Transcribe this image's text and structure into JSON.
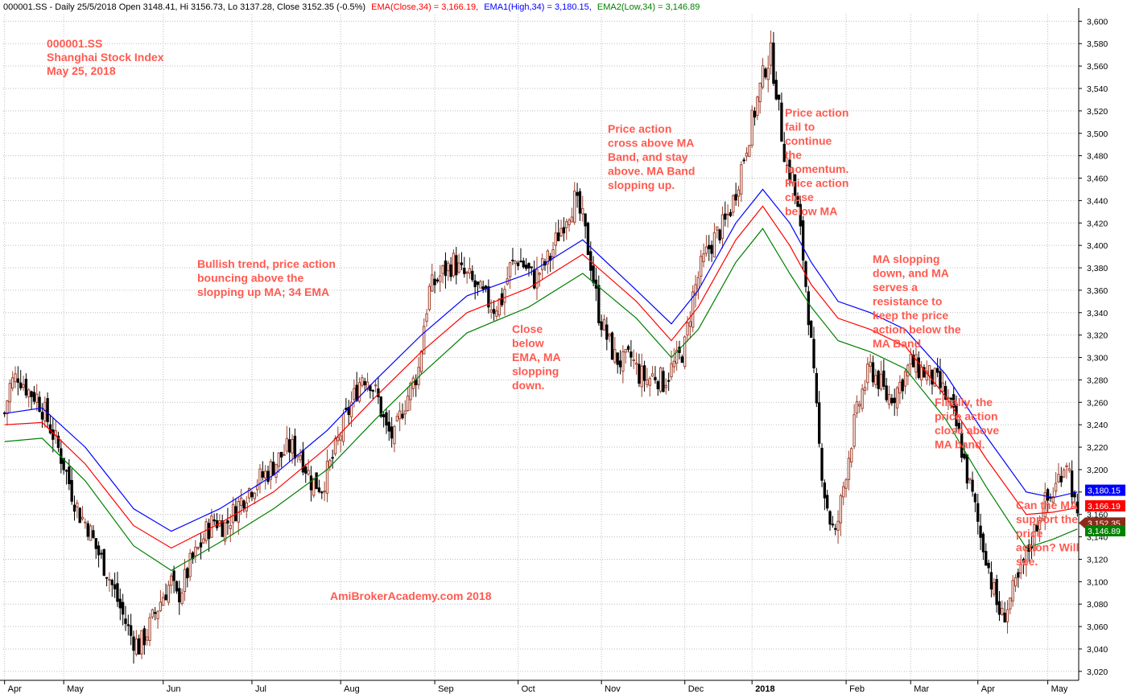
{
  "header": {
    "prefix": "000001.SS - Daily 25/5/2018 Open 3148.41, Hi 3156.73, Lo 3137.28, Close 3152.35 (-0.5%)",
    "ema_close": "EMA(Close,34) = 3,166.19,",
    "ema_high": "EMA1(High,34) = 3,180.15,",
    "ema_low": "EMA2(Low,34) = 3,146.89"
  },
  "title_block": [
    "000001.SS",
    "Shanghai Stock Index",
    "May 25, 2018"
  ],
  "watermark": "AmiBrokerAcademy.com   2018",
  "annotations": [
    {
      "id": "bullish",
      "lines": [
        "Bullish trend, price action",
        "bouncing above the",
        "slopping up MA; 34 EMA"
      ]
    },
    {
      "id": "close-below",
      "lines": [
        "Close",
        "below",
        "EMA, MA",
        "slopping",
        "down."
      ]
    },
    {
      "id": "cross-above",
      "lines": [
        "Price action",
        "cross above MA",
        "Band, and stay",
        "above. MA Band",
        "slopping up."
      ]
    },
    {
      "id": "fail-momentum",
      "lines": [
        "Price action",
        "fail to",
        "continue",
        "the",
        "momentum.",
        "Price action",
        "close",
        "below MA"
      ]
    },
    {
      "id": "ma-resistance",
      "lines": [
        "MA slopping",
        "down, and MA",
        "serves a",
        "resistance to",
        "keep the price",
        "action below the",
        "MA Band"
      ]
    },
    {
      "id": "close-above",
      "lines": [
        "Finally, the",
        "price action",
        "close above",
        "MA band."
      ]
    },
    {
      "id": "question",
      "lines": [
        "Can the MA",
        "support the",
        "price",
        "action? Will",
        "see."
      ]
    }
  ],
  "colors": {
    "ema_close": "#ff0000",
    "ema_high": "#0000ff",
    "ema_low": "#008000",
    "up_candle": "#a0412d",
    "down_candle": "#000000",
    "annotation": "#ff5a50",
    "close_tag": "#8b2b1a"
  },
  "chart_data": {
    "type": "candlestick",
    "y_range": [
      3012,
      3606
    ],
    "y_ticks": [
      "3,020",
      "3,040",
      "3,060",
      "3,080",
      "3,100",
      "3,120",
      "3,140",
      "3,160",
      "3,180",
      "3,200",
      "3,220",
      "3,240",
      "3,260",
      "3,280",
      "3,300",
      "3,320",
      "3,340",
      "3,360",
      "3,380",
      "3,400",
      "3,420",
      "3,440",
      "3,460",
      "3,480",
      "3,500",
      "3,520",
      "3,540",
      "3,560",
      "3,580",
      "3,600"
    ],
    "x_labels": [
      "Apr",
      "May",
      "Jun",
      "Jul",
      "Aug",
      "Sep",
      "Oct",
      "Nov",
      "Dec",
      "2018",
      "Feb",
      "Mar",
      "Apr",
      "May"
    ],
    "grid": true,
    "price_path": [
      [
        0,
        3250
      ],
      [
        2,
        3275
      ],
      [
        5,
        3285
      ],
      [
        9,
        3270
      ],
      [
        12,
        3265
      ],
      [
        15,
        3250
      ],
      [
        18,
        3232
      ],
      [
        22,
        3205
      ],
      [
        25,
        3180
      ],
      [
        28,
        3160
      ],
      [
        31,
        3150
      ],
      [
        34,
        3130
      ],
      [
        38,
        3110
      ],
      [
        41,
        3090
      ],
      [
        44,
        3070
      ],
      [
        47,
        3052
      ],
      [
        50,
        3042
      ],
      [
        53,
        3055
      ],
      [
        56,
        3072
      ],
      [
        59,
        3088
      ],
      [
        62,
        3100
      ],
      [
        64,
        3085
      ],
      [
        66,
        3095
      ],
      [
        69,
        3115
      ],
      [
        72,
        3128
      ],
      [
        75,
        3145
      ],
      [
        78,
        3155
      ],
      [
        82,
        3150
      ],
      [
        86,
        3165
      ],
      [
        90,
        3180
      ],
      [
        94,
        3190
      ],
      [
        98,
        3198
      ],
      [
        102,
        3210
      ],
      [
        106,
        3220
      ],
      [
        110,
        3215
      ],
      [
        114,
        3190
      ],
      [
        118,
        3185
      ],
      [
        122,
        3210
      ],
      [
        126,
        3240
      ],
      [
        130,
        3265
      ],
      [
        133,
        3285
      ],
      [
        136,
        3280
      ],
      [
        139,
        3262
      ],
      [
        142,
        3235
      ],
      [
        145,
        3228
      ],
      [
        148,
        3255
      ],
      [
        151,
        3272
      ],
      [
        154,
        3290
      ],
      [
        156,
        3330
      ],
      [
        158,
        3360
      ],
      [
        161,
        3370
      ],
      [
        164,
        3378
      ],
      [
        167,
        3385
      ],
      [
        170,
        3375
      ],
      [
        173,
        3370
      ],
      [
        176,
        3360
      ],
      [
        179,
        3352
      ],
      [
        182,
        3345
      ],
      [
        185,
        3352
      ],
      [
        188,
        3380
      ],
      [
        191,
        3388
      ],
      [
        194,
        3380
      ],
      [
        197,
        3370
      ],
      [
        200,
        3380
      ],
      [
        203,
        3390
      ],
      [
        206,
        3410
      ],
      [
        209,
        3428
      ],
      [
        212,
        3440
      ],
      [
        215,
        3422
      ],
      [
        218,
        3385
      ],
      [
        221,
        3340
      ],
      [
        224,
        3318
      ],
      [
        227,
        3300
      ],
      [
        230,
        3295
      ],
      [
        233,
        3300
      ],
      [
        236,
        3285
      ],
      [
        239,
        3280
      ],
      [
        242,
        3285
      ],
      [
        245,
        3278
      ],
      [
        248,
        3290
      ],
      [
        251,
        3300
      ],
      [
        253,
        3310
      ],
      [
        256,
        3355
      ],
      [
        259,
        3380
      ],
      [
        262,
        3398
      ],
      [
        265,
        3410
      ],
      [
        268,
        3420
      ],
      [
        271,
        3440
      ],
      [
        274,
        3470
      ],
      [
        277,
        3500
      ],
      [
        280,
        3530
      ],
      [
        283,
        3560
      ],
      [
        285,
        3570
      ],
      [
        287,
        3540
      ],
      [
        289,
        3500
      ],
      [
        291,
        3470
      ],
      [
        293,
        3460
      ],
      [
        295,
        3430
      ],
      [
        297,
        3390
      ],
      [
        299,
        3340
      ],
      [
        301,
        3280
      ],
      [
        303,
        3220
      ],
      [
        305,
        3180
      ],
      [
        307,
        3155
      ],
      [
        309,
        3140
      ],
      [
        311,
        3170
      ],
      [
        313,
        3200
      ],
      [
        316,
        3240
      ],
      [
        319,
        3270
      ],
      [
        322,
        3290
      ],
      [
        325,
        3280
      ],
      [
        328,
        3265
      ],
      [
        331,
        3268
      ],
      [
        334,
        3280
      ],
      [
        337,
        3295
      ],
      [
        340,
        3290
      ],
      [
        343,
        3285
      ],
      [
        346,
        3280
      ],
      [
        349,
        3270
      ],
      [
        352,
        3255
      ],
      [
        355,
        3230
      ],
      [
        358,
        3195
      ],
      [
        361,
        3165
      ],
      [
        363,
        3140
      ],
      [
        365,
        3125
      ],
      [
        367,
        3100
      ],
      [
        369,
        3080
      ],
      [
        371,
        3068
      ],
      [
        373,
        3078
      ],
      [
        375,
        3090
      ],
      [
        377,
        3100
      ],
      [
        379,
        3115
      ],
      [
        381,
        3130
      ],
      [
        383,
        3145
      ],
      [
        385,
        3160
      ],
      [
        387,
        3170
      ],
      [
        389,
        3175
      ],
      [
        391,
        3185
      ],
      [
        393,
        3200
      ],
      [
        395,
        3210
      ],
      [
        397,
        3185
      ],
      [
        399,
        3152
      ]
    ],
    "series": [
      {
        "name": "EMA1(High,34)",
        "points": [
          [
            0,
            3250
          ],
          [
            14,
            3255
          ],
          [
            30,
            3220
          ],
          [
            48,
            3165
          ],
          [
            62,
            3145
          ],
          [
            80,
            3165
          ],
          [
            100,
            3195
          ],
          [
            120,
            3235
          ],
          [
            138,
            3280
          ],
          [
            155,
            3320
          ],
          [
            172,
            3355
          ],
          [
            195,
            3375
          ],
          [
            215,
            3405
          ],
          [
            235,
            3360
          ],
          [
            248,
            3330
          ],
          [
            258,
            3360
          ],
          [
            272,
            3420
          ],
          [
            282,
            3450
          ],
          [
            292,
            3420
          ],
          [
            300,
            3385
          ],
          [
            310,
            3350
          ],
          [
            322,
            3340
          ],
          [
            335,
            3325
          ],
          [
            350,
            3285
          ],
          [
            365,
            3230
          ],
          [
            380,
            3180
          ],
          [
            390,
            3175
          ],
          [
            399,
            3180
          ]
        ]
      },
      {
        "name": "EMA(Close,34)",
        "points": [
          [
            0,
            3240
          ],
          [
            14,
            3242
          ],
          [
            30,
            3205
          ],
          [
            48,
            3150
          ],
          [
            62,
            3130
          ],
          [
            80,
            3152
          ],
          [
            100,
            3180
          ],
          [
            120,
            3220
          ],
          [
            138,
            3265
          ],
          [
            155,
            3305
          ],
          [
            172,
            3340
          ],
          [
            195,
            3362
          ],
          [
            215,
            3392
          ],
          [
            235,
            3350
          ],
          [
            248,
            3315
          ],
          [
            258,
            3345
          ],
          [
            272,
            3405
          ],
          [
            282,
            3435
          ],
          [
            292,
            3400
          ],
          [
            300,
            3365
          ],
          [
            310,
            3335
          ],
          [
            322,
            3325
          ],
          [
            335,
            3310
          ],
          [
            350,
            3265
          ],
          [
            365,
            3210
          ],
          [
            380,
            3160
          ],
          [
            390,
            3162
          ],
          [
            399,
            3166
          ]
        ]
      },
      {
        "name": "EMA2(Low,34)",
        "points": [
          [
            0,
            3225
          ],
          [
            14,
            3228
          ],
          [
            30,
            3190
          ],
          [
            48,
            3132
          ],
          [
            62,
            3110
          ],
          [
            80,
            3135
          ],
          [
            100,
            3165
          ],
          [
            120,
            3200
          ],
          [
            138,
            3245
          ],
          [
            155,
            3285
          ],
          [
            172,
            3322
          ],
          [
            195,
            3345
          ],
          [
            215,
            3375
          ],
          [
            235,
            3335
          ],
          [
            248,
            3300
          ],
          [
            258,
            3325
          ],
          [
            272,
            3385
          ],
          [
            282,
            3415
          ],
          [
            292,
            3375
          ],
          [
            300,
            3345
          ],
          [
            310,
            3315
          ],
          [
            322,
            3305
          ],
          [
            335,
            3290
          ],
          [
            350,
            3245
          ],
          [
            365,
            3185
          ],
          [
            380,
            3130
          ],
          [
            390,
            3138
          ],
          [
            399,
            3147
          ]
        ]
      }
    ],
    "last_values": {
      "ema_high": {
        "value": 3180.15,
        "label": "3,180.15"
      },
      "ema_close": {
        "value": 3166.19,
        "label": "3,166.19"
      },
      "close": {
        "value": 3152.35,
        "label": "3,152.35"
      },
      "ema_low": {
        "value": 3146.89,
        "label": "3,146.89"
      }
    }
  }
}
